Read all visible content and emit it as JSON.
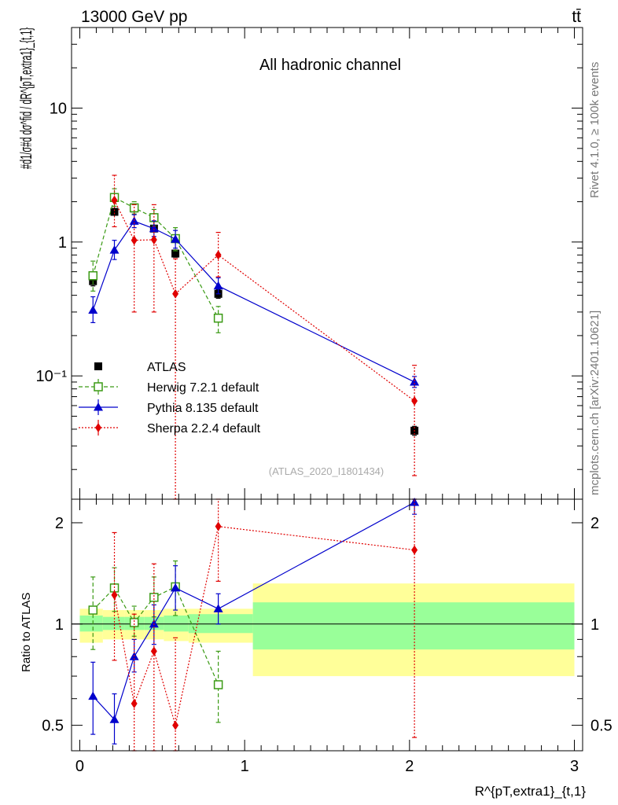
{
  "header": {
    "energy_label": "13000 GeV pp",
    "process_label": "tt̄",
    "side_rivet": "Rivet 4.1.0, ≥ 100k events",
    "side_mcplots": "mcplots.cern.ch [arXiv:2401.10621]"
  },
  "chart_data": [
    {
      "type": "scatter",
      "panel": "main",
      "title": "All hadronic channel",
      "ylabel": "#d1/σ#d dσ^fid / dR^{pT,extra1}_{t,1}",
      "yscale": "log",
      "ylim": [
        0.012,
        40
      ],
      "xlim": [
        -0.05,
        3.05
      ],
      "watermark": "(ATLAS_2020_I1801434)",
      "yticks": [
        {
          "value": 10,
          "label": "10"
        },
        {
          "value": 1,
          "label": "1"
        },
        {
          "value": 0.1,
          "label": "10⁻¹"
        }
      ],
      "legend": {
        "position": "lower-left"
      },
      "series": [
        {
          "name": "ATLAS",
          "style": "data",
          "color": "#000000",
          "marker": "square-filled",
          "x": [
            0.08,
            0.21,
            0.33,
            0.45,
            0.58,
            0.84,
            2.03
          ],
          "y": [
            0.51,
            1.68,
            1.78,
            1.26,
            0.82,
            0.41,
            0.039
          ],
          "xerr": [
            0.02,
            0.02,
            0.02,
            0.02,
            0.02,
            0.02,
            0.02
          ],
          "ylo": [
            0.47,
            1.6,
            1.7,
            1.2,
            0.77,
            0.38,
            0.036
          ],
          "yhi": [
            0.55,
            1.76,
            1.86,
            1.32,
            0.87,
            0.44,
            0.042
          ]
        },
        {
          "name": "Herwig 7.2.1 default",
          "style": "dashed",
          "color": "#3a9a14",
          "marker": "square-open",
          "x": [
            0.08,
            0.21,
            0.33,
            0.45,
            0.58,
            0.84
          ],
          "y": [
            0.56,
            2.15,
            1.8,
            1.52,
            1.06,
            0.27
          ],
          "ylo": [
            0.43,
            1.85,
            1.62,
            1.32,
            0.86,
            0.21
          ],
          "yhi": [
            0.72,
            2.5,
            2.0,
            1.75,
            1.28,
            0.33
          ]
        },
        {
          "name": "Pythia 8.135 default",
          "style": "solid",
          "color": "#0000cc",
          "marker": "triangle",
          "x": [
            0.08,
            0.21,
            0.33,
            0.45,
            0.58,
            0.84,
            2.03
          ],
          "y": [
            0.31,
            0.87,
            1.43,
            1.26,
            1.05,
            0.47,
            0.09
          ],
          "ylo": [
            0.25,
            0.74,
            1.28,
            1.1,
            0.9,
            0.41,
            0.082
          ],
          "yhi": [
            0.39,
            1.03,
            1.6,
            1.44,
            1.22,
            0.54,
            0.099
          ]
        },
        {
          "name": "Sherpa 2.2.4 default",
          "style": "dotted",
          "color": "#e00000",
          "marker": "diamond",
          "x": [
            0.21,
            0.33,
            0.45,
            0.58,
            0.84,
            2.03
          ],
          "y": [
            2.05,
            1.03,
            1.04,
            0.41,
            0.8,
            0.065
          ],
          "ylo": [
            1.3,
            0.3,
            0.3,
            0.011,
            0.55,
            0.018
          ],
          "yhi": [
            3.15,
            1.9,
            1.9,
            0.75,
            1.18,
            0.12
          ]
        }
      ]
    },
    {
      "type": "scatter",
      "panel": "ratio",
      "ylabel": "Ratio to ATLAS",
      "xlabel": "R^{pT,extra1}_{t,1}",
      "ylim": [
        0.42,
        2.35
      ],
      "xlim": [
        -0.05,
        3.05
      ],
      "xticks": [
        {
          "value": 0,
          "label": "0"
        },
        {
          "value": 1,
          "label": "1"
        },
        {
          "value": 2,
          "label": "2"
        },
        {
          "value": 3,
          "label": "3"
        }
      ],
      "yticks": [
        {
          "value": 0.5,
          "label": "0.5"
        },
        {
          "value": 1,
          "label": "1"
        },
        {
          "value": 2,
          "label": "2"
        }
      ],
      "bands": [
        {
          "x0": 0.0,
          "x1": 0.14,
          "stat": [
            0.95,
            1.06
          ],
          "total": [
            0.88,
            1.11
          ]
        },
        {
          "x0": 0.14,
          "x1": 0.27,
          "stat": [
            0.96,
            1.05
          ],
          "total": [
            0.9,
            1.1
          ]
        },
        {
          "x0": 0.27,
          "x1": 0.39,
          "stat": [
            0.96,
            1.05
          ],
          "total": [
            0.9,
            1.1
          ]
        },
        {
          "x0": 0.39,
          "x1": 0.51,
          "stat": [
            0.96,
            1.05
          ],
          "total": [
            0.9,
            1.1
          ]
        },
        {
          "x0": 0.51,
          "x1": 0.66,
          "stat": [
            0.95,
            1.06
          ],
          "total": [
            0.89,
            1.11
          ]
        },
        {
          "x0": 0.66,
          "x1": 1.05,
          "stat": [
            0.94,
            1.07
          ],
          "total": [
            0.88,
            1.11
          ]
        },
        {
          "x0": 1.05,
          "x1": 3.0,
          "stat": [
            0.84,
            1.16
          ],
          "total": [
            0.7,
            1.32
          ]
        }
      ],
      "series": [
        {
          "name": "Herwig 7.2.1 default",
          "style": "dashed",
          "color": "#3a9a14",
          "marker": "square-open",
          "x": [
            0.08,
            0.21,
            0.33,
            0.45,
            0.58,
            0.84
          ],
          "y": [
            1.1,
            1.28,
            1.01,
            1.2,
            1.29,
            0.66
          ],
          "ylo": [
            0.84,
            1.09,
            0.92,
            1.05,
            1.06,
            0.51
          ],
          "yhi": [
            1.38,
            1.47,
            1.13,
            1.38,
            1.54,
            0.83
          ]
        },
        {
          "name": "Pythia 8.135 default",
          "style": "solid",
          "color": "#0000cc",
          "marker": "triangle",
          "x": [
            0.08,
            0.21,
            0.33,
            0.45,
            0.58,
            0.84,
            2.03
          ],
          "y": [
            0.61,
            0.52,
            0.8,
            1.0,
            1.28,
            1.11,
            2.3
          ],
          "ylo": [
            0.47,
            0.44,
            0.72,
            0.87,
            1.1,
            1.0,
            2.12
          ],
          "yhi": [
            0.77,
            0.62,
            0.9,
            1.14,
            1.49,
            1.23,
            2.52
          ]
        },
        {
          "name": "Sherpa 2.2.4 default",
          "style": "dotted",
          "color": "#e00000",
          "marker": "diamond",
          "x": [
            0.21,
            0.33,
            0.45,
            0.58,
            0.84,
            2.03
          ],
          "y": [
            1.22,
            0.58,
            0.83,
            0.5,
            1.95,
            1.66
          ],
          "ylo": [
            0.78,
            0.17,
            0.24,
            0.013,
            1.34,
            0.46
          ],
          "yhi": [
            1.87,
            1.07,
            1.51,
            0.91,
            2.88,
            3.1
          ]
        }
      ]
    }
  ]
}
